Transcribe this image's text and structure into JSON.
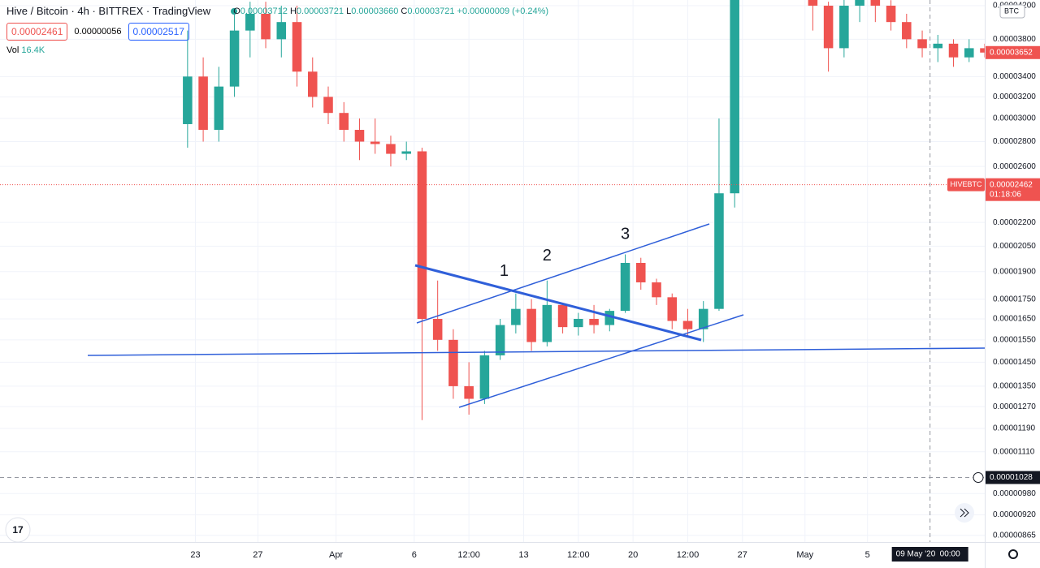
{
  "header": {
    "title": "Hive / Bitcoin · 4h · BITTREX · TradingView",
    "ohlc": [
      {
        "label": "O",
        "value": "0.00003712"
      },
      {
        "label": "H",
        "value": "0.00003721"
      },
      {
        "label": "L",
        "value": "0.00003660"
      },
      {
        "label": "C",
        "value": "0.00003721"
      }
    ],
    "change": "+0.00000009 (+0.24%)",
    "sell": "0.00002461",
    "spread": "0.00000056",
    "buy": "0.00002517",
    "volume_label": "Vol",
    "volume": "16.4K"
  },
  "currency": "BTC",
  "chart_data": {
    "type": "candlestick",
    "log": true,
    "grid": true,
    "up_color": "#26a69a",
    "down_color": "#ef5350",
    "x": [
      "2020-03-22",
      "2020-03-23",
      "2020-03-24",
      "2020-03-25",
      "2020-03-26",
      "2020-03-27",
      "2020-03-28",
      "2020-03-29",
      "2020-03-30",
      "2020-03-31",
      "2020-04-01",
      "2020-04-02",
      "2020-04-03",
      "2020-04-04",
      "2020-04-05",
      "2020-04-06",
      "2020-04-07",
      "2020-04-08",
      "2020-04-09",
      "2020-04-10",
      "2020-04-11",
      "2020-04-12",
      "2020-04-13",
      "2020-04-14",
      "2020-04-15",
      "2020-04-16",
      "2020-04-17",
      "2020-04-18",
      "2020-04-19",
      "2020-04-20",
      "2020-04-21",
      "2020-04-22",
      "2020-04-23",
      "2020-04-24",
      "2020-04-25",
      "2020-04-26",
      "2020-04-27",
      "2020-04-28",
      "2020-04-29",
      "2020-04-30",
      "2020-05-01",
      "2020-05-02",
      "2020-05-03",
      "2020-05-04",
      "2020-05-05",
      "2020-05-06",
      "2020-05-07",
      "2020-05-08",
      "2020-05-09",
      "2020-05-10",
      "2020-05-11",
      "2020-05-12"
    ],
    "open": [
      2.95e-05,
      3.4e-05,
      2.9e-05,
      3.3e-05,
      3.9e-05,
      4.1e-05,
      3.8e-05,
      4e-05,
      3.45e-05,
      3.2e-05,
      3.05e-05,
      2.9e-05,
      2.8e-05,
      2.78e-05,
      2.7e-05,
      2.72e-05,
      1.65e-05,
      1.55e-05,
      1.35e-05,
      1.3e-05,
      1.48e-05,
      1.62e-05,
      1.7e-05,
      1.54e-05,
      1.72e-05,
      1.61e-05,
      1.65e-05,
      1.62e-05,
      1.69e-05,
      1.95e-05,
      1.84e-05,
      1.76e-05,
      1.64e-05,
      1.6e-05,
      1.7e-05,
      2.4e-05,
      4.6e-05,
      5e-05,
      5.2e-05,
      5e-05,
      4.4e-05,
      4.2e-05,
      3.7e-05,
      4.2e-05,
      4.3e-05,
      4.2e-05,
      4e-05,
      3.8e-05,
      3.7e-05,
      3.75e-05,
      3.6e-05,
      3.7e-05
    ],
    "high": [
      3.9e-05,
      3.6e-05,
      3.5e-05,
      4.1e-05,
      4.25e-05,
      4.25e-05,
      4.2e-05,
      4.2e-05,
      3.6e-05,
      3.3e-05,
      3.15e-05,
      3e-05,
      3e-05,
      2.85e-05,
      2.8e-05,
      2.75e-05,
      1.85e-05,
      1.6e-05,
      1.45e-05,
      1.5e-05,
      1.65e-05,
      1.78e-05,
      1.75e-05,
      1.85e-05,
      1.73e-05,
      1.68e-05,
      1.72e-05,
      1.7e-05,
      2e-05,
      1.98e-05,
      1.86e-05,
      1.78e-05,
      1.7e-05,
      1.74e-05,
      3e-05,
      4.8e-05,
      5.2e-05,
      5.5e-05,
      5.4e-05,
      5.1e-05,
      4.5e-05,
      4.25e-05,
      4.3e-05,
      4.4e-05,
      4.35e-05,
      4.27e-05,
      4.1e-05,
      3.9e-05,
      3.85e-05,
      3.8e-05,
      3.8e-05,
      3.75e-05
    ],
    "low": [
      2.75e-05,
      2.8e-05,
      2.8e-05,
      3.2e-05,
      3.6e-05,
      3.7e-05,
      3.6e-05,
      3.3e-05,
      3.1e-05,
      2.95e-05,
      2.8e-05,
      2.65e-05,
      2.7e-05,
      2.6e-05,
      2.65e-05,
      1.22e-05,
      1.5e-05,
      1.3e-05,
      1.24e-05,
      1.28e-05,
      1.46e-05,
      1.58e-05,
      1.5e-05,
      1.52e-05,
      1.58e-05,
      1.57e-05,
      1.58e-05,
      1.59e-05,
      1.68e-05,
      1.8e-05,
      1.72e-05,
      1.6e-05,
      1.56e-05,
      1.54e-05,
      1.69e-05,
      2.3e-05,
      4.5e-05,
      4.7e-05,
      4.8e-05,
      4.3e-05,
      3.9e-05,
      3.45e-05,
      3.6e-05,
      4e-05,
      4e-05,
      3.9e-05,
      3.7e-05,
      3.6e-05,
      3.55e-05,
      3.5e-05,
      3.55e-05,
      3.6e-05
    ],
    "close": [
      3.4e-05,
      2.9e-05,
      3.3e-05,
      3.9e-05,
      4.1e-05,
      3.8e-05,
      4e-05,
      3.45e-05,
      3.2e-05,
      3.05e-05,
      2.9e-05,
      2.8e-05,
      2.78e-05,
      2.7e-05,
      2.72e-05,
      1.65e-05,
      1.55e-05,
      1.35e-05,
      1.3e-05,
      1.48e-05,
      1.62e-05,
      1.7e-05,
      1.54e-05,
      1.72e-05,
      1.61e-05,
      1.65e-05,
      1.62e-05,
      1.69e-05,
      1.95e-05,
      1.84e-05,
      1.76e-05,
      1.64e-05,
      1.6e-05,
      1.7e-05,
      2.4e-05,
      4.6e-05,
      5e-05,
      5.2e-05,
      5e-05,
      4.4e-05,
      4.2e-05,
      3.7e-05,
      4.2e-05,
      4.3e-05,
      4.2e-05,
      4e-05,
      3.8e-05,
      3.7e-05,
      3.75e-05,
      3.6e-05,
      3.7e-05,
      3.652e-05
    ],
    "ylim": [
      8.48e-06,
      4.272e-05
    ],
    "yticks": [
      {
        "value": 4.2e-05,
        "label": "0.00004200"
      },
      {
        "value": 3.8e-05,
        "label": "0.00003800"
      },
      {
        "value": 3.4e-05,
        "label": "0.00003400"
      },
      {
        "value": 3.2e-05,
        "label": "0.00003200"
      },
      {
        "value": 3e-05,
        "label": "0.00003000"
      },
      {
        "value": 2.8e-05,
        "label": "0.00002800"
      },
      {
        "value": 2.6e-05,
        "label": "0.00002600"
      },
      {
        "value": 2.2e-05,
        "label": "0.00002200"
      },
      {
        "value": 2.05e-05,
        "label": "0.00002050"
      },
      {
        "value": 1.9e-05,
        "label": "0.00001900"
      },
      {
        "value": 1.75e-05,
        "label": "0.00001750"
      },
      {
        "value": 1.65e-05,
        "label": "0.00001650"
      },
      {
        "value": 1.55e-05,
        "label": "0.00001550"
      },
      {
        "value": 1.45e-05,
        "label": "0.00001450"
      },
      {
        "value": 1.35e-05,
        "label": "0.00001350"
      },
      {
        "value": 1.27e-05,
        "label": "0.00001270"
      },
      {
        "value": 1.19e-05,
        "label": "0.00001190"
      },
      {
        "value": 1.11e-05,
        "label": "0.00001110"
      },
      {
        "value": 9.8e-06,
        "label": "0.00000980"
      },
      {
        "value": 9.2e-06,
        "label": "0.00000920"
      },
      {
        "value": 8.65e-06,
        "label": "0.00000865"
      }
    ],
    "xlim": [
      "2020-03-10T12",
      "2020-05-12T12"
    ],
    "xticks": [
      {
        "value": "2020-03-23",
        "label": "23"
      },
      {
        "value": "2020-03-27",
        "label": "27"
      },
      {
        "value": "2020-04-01",
        "label": "Apr"
      },
      {
        "value": "2020-04-06",
        "label": "6"
      },
      {
        "value": "2020-04-09T12",
        "label": "12:00"
      },
      {
        "value": "2020-04-13",
        "label": "13"
      },
      {
        "value": "2020-04-16T12",
        "label": "12:00"
      },
      {
        "value": "2020-04-20",
        "label": "20"
      },
      {
        "value": "2020-04-23T12",
        "label": "12:00"
      },
      {
        "value": "2020-04-27",
        "label": "27"
      },
      {
        "value": "2020-05-01",
        "label": "May"
      },
      {
        "value": "2020-05-05",
        "label": "5"
      }
    ],
    "last_price": 3.652e-05,
    "symbol_tag": {
      "name": "HIVEBTC",
      "value": 2.462e-05,
      "countdown": "01:18:06"
    },
    "crosshair": {
      "price": 1.028e-05,
      "date": "2020-05-09",
      "date_label": "09 May '20",
      "time_label": "00:00"
    },
    "annotations": [
      {
        "text": "1",
        "x": "2020-04-11T18",
        "y": 1.9e-05
      },
      {
        "text": "2",
        "x": "2020-04-14T12",
        "y": 1.99e-05
      },
      {
        "text": "3",
        "x": "2020-04-19T12",
        "y": 2.12e-05
      }
    ]
  }
}
